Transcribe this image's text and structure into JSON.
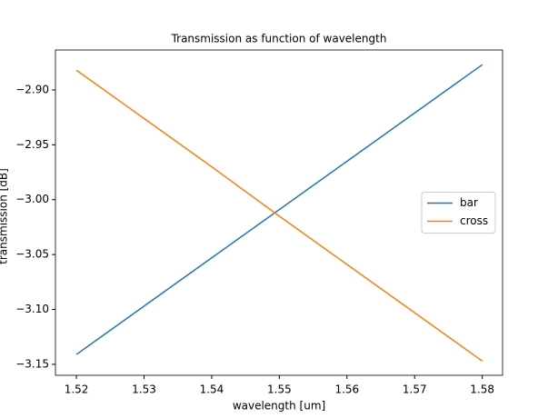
{
  "chart_data": {
    "type": "line",
    "title": "Transmission as function of wavelength",
    "xlabel": "wavelength [um]",
    "ylabel": "transmission [dB]",
    "x": [
      1.52,
      1.53,
      1.54,
      1.55,
      1.56,
      1.57,
      1.58
    ],
    "series": [
      {
        "name": "bar",
        "color": "#1f77b4",
        "values": [
          -3.141,
          -3.097,
          -3.053,
          -3.009,
          -2.965,
          -2.921,
          -2.877
        ]
      },
      {
        "name": "cross",
        "color": "#ff7f0e",
        "values": [
          -2.882,
          -2.926,
          -2.97,
          -3.015,
          -3.059,
          -3.103,
          -3.147
        ]
      }
    ],
    "xlim": [
      1.5169,
      1.583
    ],
    "ylim": [
      -3.16,
      -2.8636
    ],
    "xticks": [
      1.52,
      1.53,
      1.54,
      1.55,
      1.56,
      1.57,
      1.58
    ],
    "yticks": [
      {
        "value": -2.9,
        "label": "−2.90"
      },
      {
        "value": -2.95,
        "label": "−2.95"
      },
      {
        "value": -3.0,
        "label": "−3.00"
      },
      {
        "value": -3.05,
        "label": "−3.05"
      },
      {
        "value": -3.1,
        "label": "−3.10"
      },
      {
        "value": -3.15,
        "label": "−3.15"
      }
    ],
    "legend": "center right",
    "grid": false
  }
}
